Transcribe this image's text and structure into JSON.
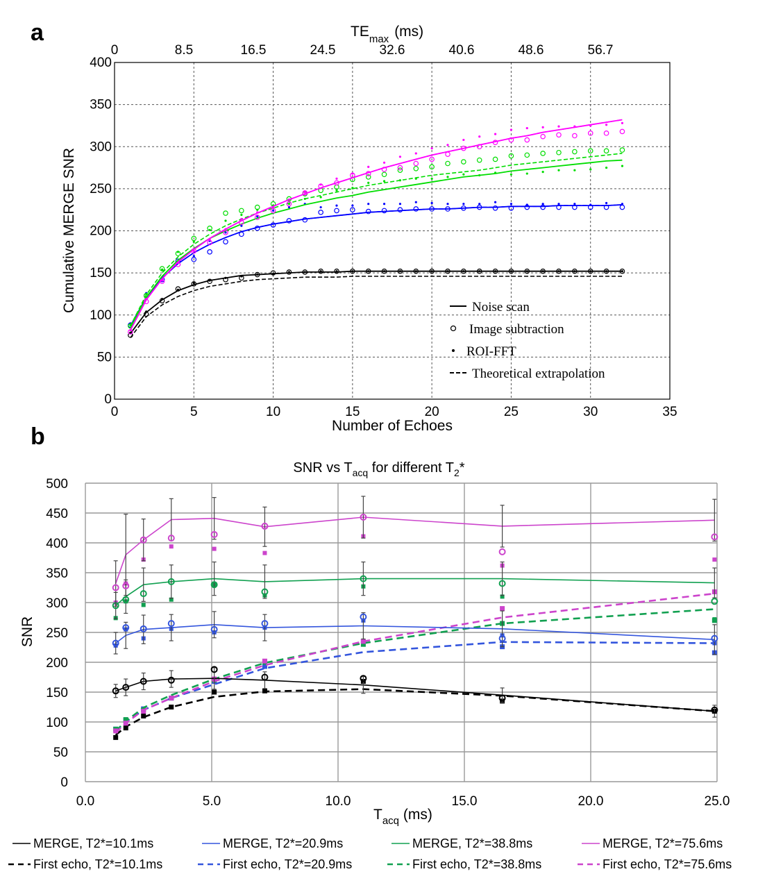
{
  "panel_a_label": "a",
  "panel_b_label": "b",
  "chart_data": [
    {
      "type": "scatter",
      "title": "",
      "xlabel": "Number of Echoes",
      "ylabel": "Cumulative MERGE SNR",
      "top_xlabel_main": "TE",
      "top_xlabel_sub": "max",
      "top_xlabel_unit": "(ms)",
      "xlim": [
        0,
        35
      ],
      "ylim": [
        0,
        400
      ],
      "x_ticks": [
        "0",
        "5",
        "10",
        "15",
        "20",
        "25",
        "30",
        "35"
      ],
      "y_ticks": [
        "0",
        "50",
        "100",
        "150",
        "200",
        "250",
        "300",
        "350",
        "400"
      ],
      "top_ticks": [
        "0",
        "8.5",
        "16.5",
        "24.5",
        "32.6",
        "40.6",
        "48.6",
        "56.7"
      ],
      "grid": true,
      "legend": [
        {
          "label": "Noise scan",
          "style": "line"
        },
        {
          "label": "Image subtraction",
          "style": "circle"
        },
        {
          "label": "ROI-FFT",
          "style": "dot"
        },
        {
          "label": "Theoretical extrapolation",
          "style": "dash"
        }
      ],
      "legend_placement": "bottom-right",
      "x": [
        1,
        2,
        3,
        4,
        5,
        6,
        7,
        8,
        9,
        10,
        11,
        12,
        13,
        14,
        15,
        16,
        17,
        18,
        19,
        20,
        21,
        22,
        23,
        24,
        25,
        26,
        27,
        28,
        29,
        30,
        31,
        32
      ],
      "series": [
        {
          "name": "black",
          "color": "#000000",
          "noise_scan": [
            78,
            103,
            118,
            129,
            136,
            141,
            144,
            147,
            148,
            149,
            150,
            151,
            151,
            151,
            152,
            152,
            152,
            152,
            152,
            152,
            152,
            152,
            152,
            152,
            152,
            152,
            152,
            152,
            152,
            152,
            152,
            152
          ],
          "theoretical": [
            73,
            98,
            112,
            122,
            129,
            134,
            137,
            140,
            142,
            143,
            144,
            145,
            145,
            145,
            146,
            146,
            146,
            146,
            146,
            146,
            146,
            146,
            146,
            146,
            146,
            146,
            146,
            146,
            146,
            146,
            146,
            146
          ],
          "image_subtraction": [
            76,
            101,
            117,
            131,
            137,
            140,
            142,
            144,
            148,
            150,
            151,
            151,
            152,
            152,
            152,
            152,
            152,
            152,
            152,
            152,
            152,
            152,
            152,
            152,
            152,
            152,
            152,
            152,
            152,
            152,
            152,
            152
          ],
          "roi_fft": [
            79,
            104,
            119,
            130,
            138,
            141,
            144,
            146,
            148,
            149,
            151,
            151,
            152,
            152,
            152,
            152,
            152,
            152,
            152,
            152,
            152,
            152,
            152,
            152,
            152,
            152,
            152,
            152,
            152,
            152,
            152,
            152
          ]
        },
        {
          "name": "blue",
          "color": "#0000ff",
          "noise_scan": [
            87,
            121,
            144,
            161,
            174,
            184,
            192,
            199,
            204,
            208,
            211,
            214,
            216,
            218,
            220,
            222,
            223,
            224,
            225,
            226,
            226,
            227,
            228,
            228,
            229,
            229,
            229,
            230,
            230,
            230,
            230,
            231
          ],
          "theoretical": [
            87,
            121,
            144,
            161,
            174,
            184,
            192,
            199,
            204,
            208,
            211,
            214,
            216,
            218,
            220,
            222,
            223,
            224,
            225,
            226,
            226,
            227,
            228,
            228,
            229,
            229,
            229,
            230,
            230,
            230,
            230,
            231
          ],
          "image_subtraction": [
            88,
            123,
            142,
            164,
            166,
            175,
            187,
            196,
            203,
            207,
            212,
            213,
            222,
            224,
            225,
            223,
            224,
            225,
            226,
            226,
            226,
            227,
            228,
            227,
            227,
            228,
            228,
            228,
            228,
            228,
            228,
            228
          ],
          "roi_fft": [
            90,
            126,
            144,
            163,
            170,
            188,
            198,
            206,
            217,
            224,
            228,
            232,
            228,
            230,
            230,
            232,
            232,
            232,
            234,
            233,
            232,
            232,
            232,
            234,
            232,
            231,
            232,
            232,
            232,
            231,
            233,
            232
          ]
        },
        {
          "name": "green",
          "color": "#00dd00",
          "noise_scan": [
            85,
            121,
            146,
            165,
            179,
            191,
            200,
            208,
            215,
            221,
            226,
            231,
            235,
            239,
            242,
            246,
            249,
            252,
            255,
            258,
            261,
            264,
            266,
            268,
            271,
            273,
            275,
            277,
            279,
            281,
            283,
            284
          ],
          "theoretical": [
            87,
            124,
            150,
            169,
            184,
            196,
            206,
            214,
            221,
            227,
            233,
            238,
            242,
            246,
            250,
            254,
            257,
            260,
            263,
            266,
            268,
            270,
            272,
            275,
            278,
            280,
            282,
            284,
            286,
            288,
            290,
            292
          ],
          "image_subtraction": [
            87,
            123,
            155,
            173,
            191,
            203,
            221,
            224,
            228,
            232,
            238,
            244,
            248,
            252,
            261,
            264,
            267,
            272,
            274,
            276,
            280,
            282,
            284,
            285,
            289,
            290,
            292,
            293,
            294,
            295,
            295,
            296
          ],
          "roi_fft": [
            88,
            125,
            154,
            175,
            187,
            201,
            212,
            219,
            225,
            230,
            232,
            238,
            240,
            248,
            251,
            257,
            259,
            260,
            262,
            262,
            264,
            267,
            266,
            269,
            267,
            268,
            270,
            272,
            272,
            273,
            275,
            277
          ]
        },
        {
          "name": "magenta",
          "color": "#ff00ff",
          "noise_scan": [
            82,
            118,
            143,
            163,
            178,
            191,
            202,
            212,
            221,
            229,
            237,
            244,
            251,
            257,
            263,
            269,
            275,
            280,
            285,
            290,
            294,
            298,
            302,
            306,
            310,
            313,
            317,
            320,
            323,
            326,
            329,
            332
          ],
          "theoretical": [
            82,
            118,
            143,
            163,
            178,
            191,
            202,
            212,
            221,
            229,
            237,
            244,
            251,
            257,
            263,
            269,
            275,
            280,
            285,
            290,
            294,
            298,
            302,
            306,
            310,
            313,
            317,
            320,
            323,
            326,
            329,
            332
          ],
          "image_subtraction": [
            80,
            116,
            140,
            160,
            176,
            186,
            198,
            210,
            216,
            224,
            232,
            245,
            253,
            257,
            266,
            268,
            273,
            275,
            280,
            285,
            291,
            298,
            300,
            305,
            308,
            308,
            312,
            314,
            313,
            316,
            316,
            318
          ],
          "roi_fft": [
            82,
            119,
            141,
            162,
            176,
            190,
            202,
            214,
            222,
            228,
            237,
            246,
            255,
            262,
            268,
            276,
            281,
            288,
            292,
            298,
            302,
            308,
            312,
            315,
            320,
            322,
            323,
            324,
            324,
            325,
            326,
            328
          ]
        }
      ]
    },
    {
      "type": "line",
      "title_main": "SNR vs T",
      "title_sub1": "acq",
      "title_mid": " for different T",
      "title_sub2": "2",
      "title_end": "*",
      "xlabel_main": "T",
      "xlabel_sub": "acq",
      "xlabel_unit": " (ms)",
      "ylabel": "SNR",
      "xlim": [
        0,
        25.0
      ],
      "ylim": [
        0,
        500
      ],
      "x_ticks": [
        "0.0",
        "5.0",
        "10.0",
        "15.0",
        "20.0",
        "25.0"
      ],
      "y_ticks": [
        "0",
        "50",
        "100",
        "150",
        "200",
        "250",
        "300",
        "350",
        "400",
        "450",
        "500"
      ],
      "grid": true,
      "legend_placement": "bottom",
      "legend": [
        {
          "label": "MERGE, T2*=10.1ms",
          "color": "#000000",
          "style": "solid"
        },
        {
          "label": "MERGE, T2*=20.9ms",
          "color": "#3355dd",
          "style": "solid"
        },
        {
          "label": "MERGE, T2*=38.8ms",
          "color": "#11a050",
          "style": "solid"
        },
        {
          "label": "MERGE, T2*=75.6ms",
          "color": "#cc44cc",
          "style": "solid"
        },
        {
          "label": "First echo, T2*=10.1ms",
          "color": "#000000",
          "style": "dashed"
        },
        {
          "label": "First echo, T2*=20.9ms",
          "color": "#3355dd",
          "style": "dashed"
        },
        {
          "label": "First echo, T2*=38.8ms",
          "color": "#11a050",
          "style": "dashed"
        },
        {
          "label": "First echo, T2*=75.6ms",
          "color": "#cc44cc",
          "style": "dashed"
        }
      ],
      "x": [
        1.2,
        1.6,
        2.3,
        3.4,
        5.1,
        7.1,
        11.0,
        16.5,
        24.9
      ],
      "merge_series": [
        {
          "name": "MERGE, T2*=10.1ms",
          "color": "#000000",
          "line": [
            152,
            158,
            168,
            172,
            173,
            170,
            162,
            145,
            118
          ],
          "circles": [
            152,
            158,
            168,
            170,
            188,
            175,
            173,
            140,
            120
          ],
          "errors": [
            11,
            14,
            14,
            14,
            18,
            14,
            14,
            12,
            10
          ]
        },
        {
          "name": "MERGE, T2*=20.9ms",
          "color": "#3355dd",
          "line": [
            232,
            245,
            255,
            258,
            263,
            258,
            261,
            256,
            238
          ],
          "circles": [
            232,
            258,
            256,
            265,
            255,
            265,
            276,
            240,
            240
          ],
          "errors": [
            18,
            22,
            24,
            22,
            22,
            22,
            22,
            30,
            25
          ]
        },
        {
          "name": "MERGE, T2*=38.8ms",
          "color": "#11a050",
          "line": [
            295,
            310,
            330,
            335,
            340,
            335,
            340,
            340,
            333
          ],
          "circles": [
            295,
            305,
            315,
            335,
            330,
            318,
            340,
            332,
            302
          ],
          "errors": [
            22,
            28,
            28,
            28,
            28,
            28,
            28,
            28,
            25
          ]
        },
        {
          "name": "MERGE, T2*=75.6ms",
          "color": "#cc44cc",
          "line": [
            332,
            380,
            405,
            439,
            441,
            427,
            443,
            428,
            438
          ],
          "circles": [
            325,
            328,
            405,
            408,
            414,
            428,
            443,
            385,
            410
          ],
          "errors": [
            38,
            68,
            35,
            35,
            35,
            33,
            35,
            35,
            35
          ]
        }
      ],
      "first_echo_series": [
        {
          "name": "First echo, T2*=10.1ms",
          "color": "#000000",
          "line": [
            78,
            92,
            108,
            125,
            142,
            151,
            155,
            144,
            118
          ],
          "squares": [
            74,
            90,
            110,
            125,
            150,
            152,
            168,
            135,
            118
          ]
        },
        {
          "name": "First echo, T2*=20.9ms",
          "color": "#3355dd",
          "line": [
            85,
            100,
            120,
            140,
            163,
            190,
            217,
            234,
            232
          ],
          "squares": [
            88,
            103,
            122,
            140,
            168,
            193,
            235,
            226,
            216
          ]
        },
        {
          "name": "First echo, T2*=38.8ms",
          "color": "#11a050",
          "line": [
            85,
            101,
            124,
            145,
            172,
            199,
            232,
            265,
            289
          ],
          "squares": [
            88,
            104,
            120,
            140,
            170,
            200,
            230,
            265,
            270
          ]
        },
        {
          "name": "First echo, T2*=75.6ms",
          "color": "#cc44cc",
          "line": [
            82,
            98,
            120,
            140,
            168,
            195,
            235,
            275,
            315
          ],
          "squares": [
            85,
            98,
            118,
            140,
            172,
            202,
            235,
            290,
            318
          ]
        }
      ],
      "first_echo_extra_squares": [
        {
          "color": "#11a050",
          "points": [
            [
              1.2,
              274
            ],
            [
              1.6,
              302
            ],
            [
              2.3,
              296
            ],
            [
              3.4,
              305
            ],
            [
              5.1,
              330
            ],
            [
              7.1,
              312
            ],
            [
              11.0,
              327
            ],
            [
              16.5,
              310
            ],
            [
              24.9,
              272
            ]
          ]
        },
        {
          "color": "#3355dd",
          "points": [
            [
              1.2,
              228
            ],
            [
              1.6,
              255
            ],
            [
              2.3,
              240
            ],
            [
              3.4,
              256
            ],
            [
              5.1,
              250
            ],
            [
              7.1,
              258
            ],
            [
              11.0,
              270
            ],
            [
              16.5,
              245
            ],
            [
              24.9,
              232
            ]
          ]
        },
        {
          "color": "#cc44cc",
          "points": [
            [
              1.2,
              300
            ],
            [
              1.6,
              332
            ],
            [
              2.3,
              372
            ],
            [
              3.4,
              394
            ],
            [
              5.1,
              390
            ],
            [
              7.1,
              383
            ],
            [
              11.0,
              411
            ],
            [
              16.5,
              362
            ],
            [
              24.9,
              372
            ]
          ]
        }
      ]
    }
  ]
}
